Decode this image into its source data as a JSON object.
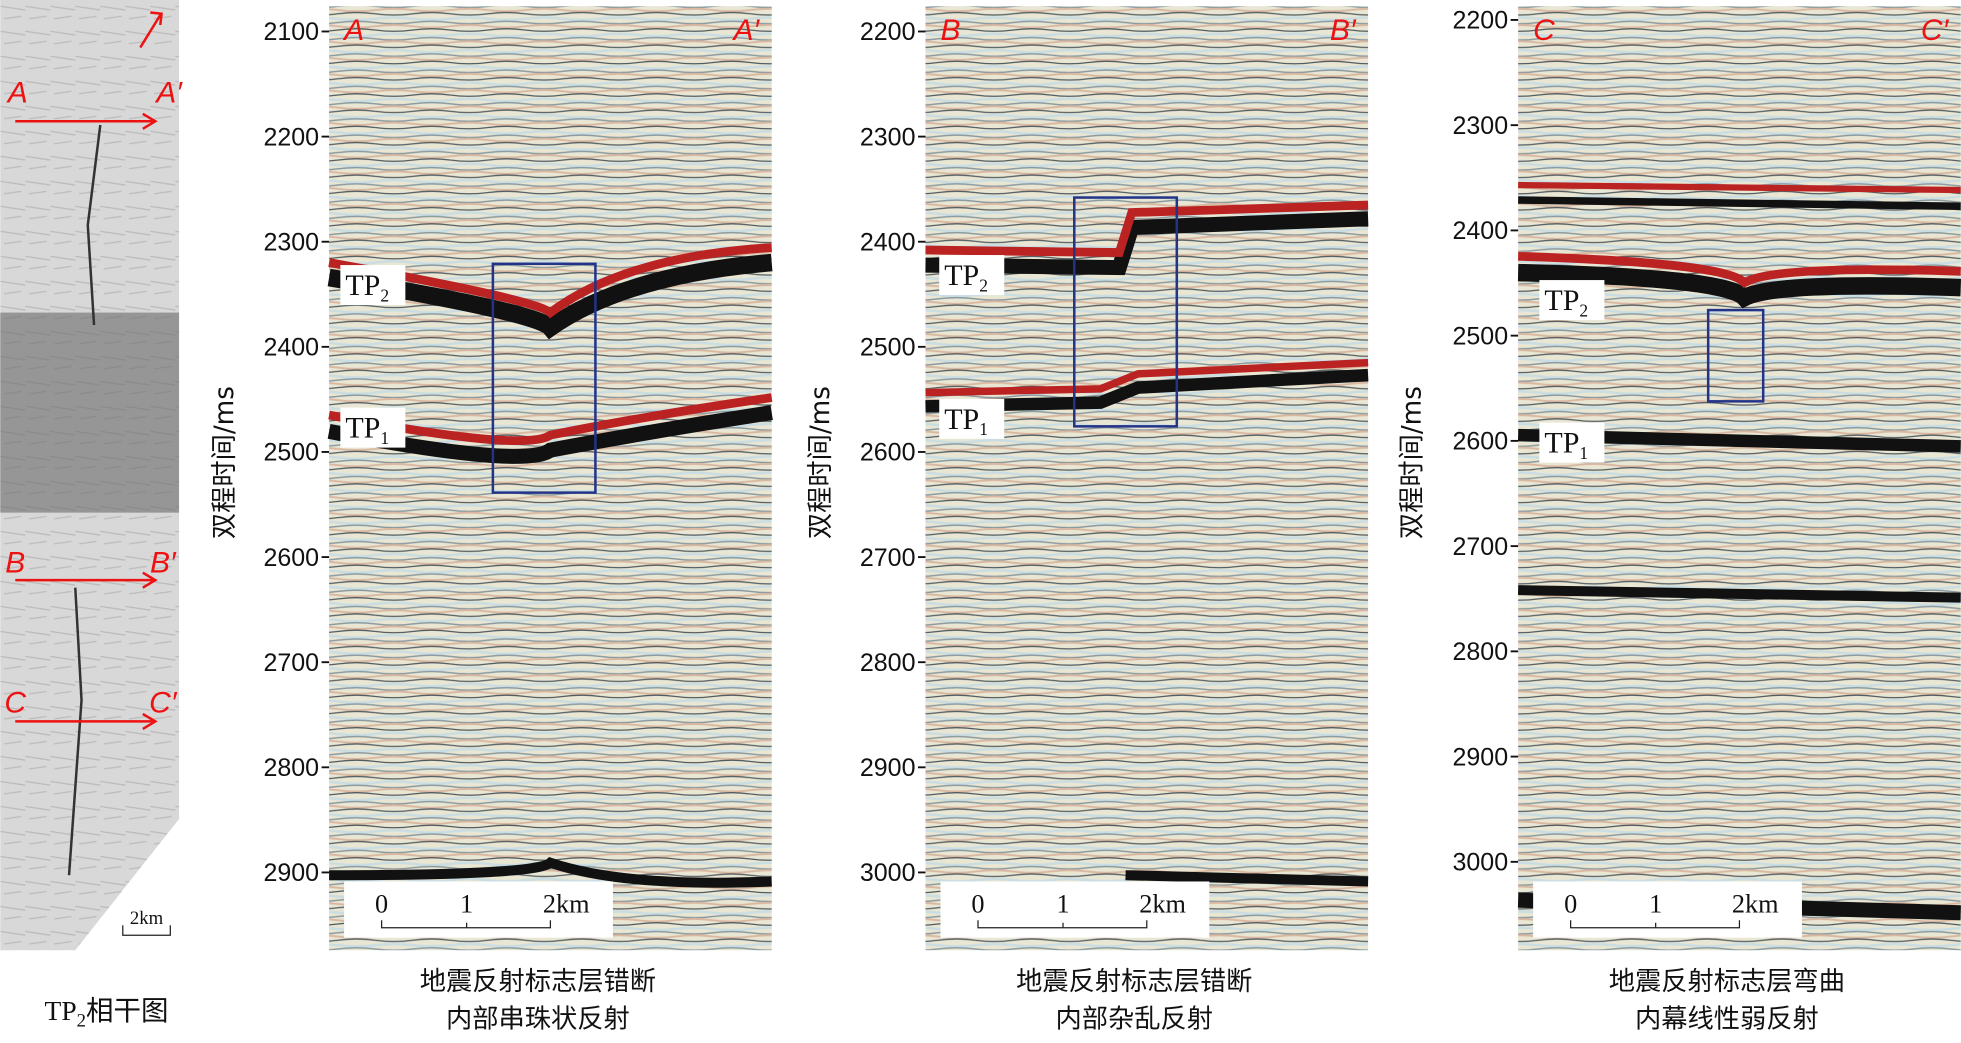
{
  "map": {
    "labels": [
      "A",
      "A′",
      "B",
      "B′",
      "C",
      "C′"
    ],
    "scale": "2km",
    "caption": {
      "text": "TP",
      "sub": "2",
      "rest": "相干图"
    }
  },
  "panels": [
    {
      "left": "A",
      "right": "A′",
      "y_label": "双程时间/ms",
      "ylim": [
        2076,
        2974
      ],
      "yticks": [
        2100,
        2200,
        2300,
        2400,
        2500,
        2600,
        2700,
        2800,
        2900
      ],
      "markers": [
        {
          "text": "TP",
          "sub": "2"
        },
        {
          "text": "TP",
          "sub": "1"
        }
      ],
      "scale_bar": [
        "0",
        "1",
        "2km"
      ],
      "caption": [
        "地震反射标志层错断",
        "内部串珠状反射"
      ]
    },
    {
      "left": "B",
      "right": "B′",
      "y_label": "双程时间/ms",
      "ylim": [
        2176,
        3074
      ],
      "yticks": [
        2200,
        2300,
        2400,
        2500,
        2600,
        2700,
        2800,
        2900,
        3000
      ],
      "markers": [
        {
          "text": "TP",
          "sub": "2"
        },
        {
          "text": "TP",
          "sub": "1"
        }
      ],
      "scale_bar": [
        "0",
        "1",
        "2km"
      ],
      "caption": [
        "地震反射标志层错断",
        "内部杂乱反射"
      ]
    },
    {
      "left": "C",
      "right": "C′",
      "y_label": "双程时间/ms",
      "ylim": [
        2187,
        3084
      ],
      "yticks": [
        2200,
        2300,
        2400,
        2500,
        2600,
        2700,
        2800,
        2900,
        3000
      ],
      "markers": [
        {
          "text": "TP",
          "sub": "2"
        },
        {
          "text": "TP",
          "sub": "1"
        }
      ],
      "scale_bar": [
        "0",
        "1",
        "2km"
      ],
      "caption": [
        "地震反射标志层弯曲",
        "内幕线性弱反射"
      ]
    }
  ]
}
